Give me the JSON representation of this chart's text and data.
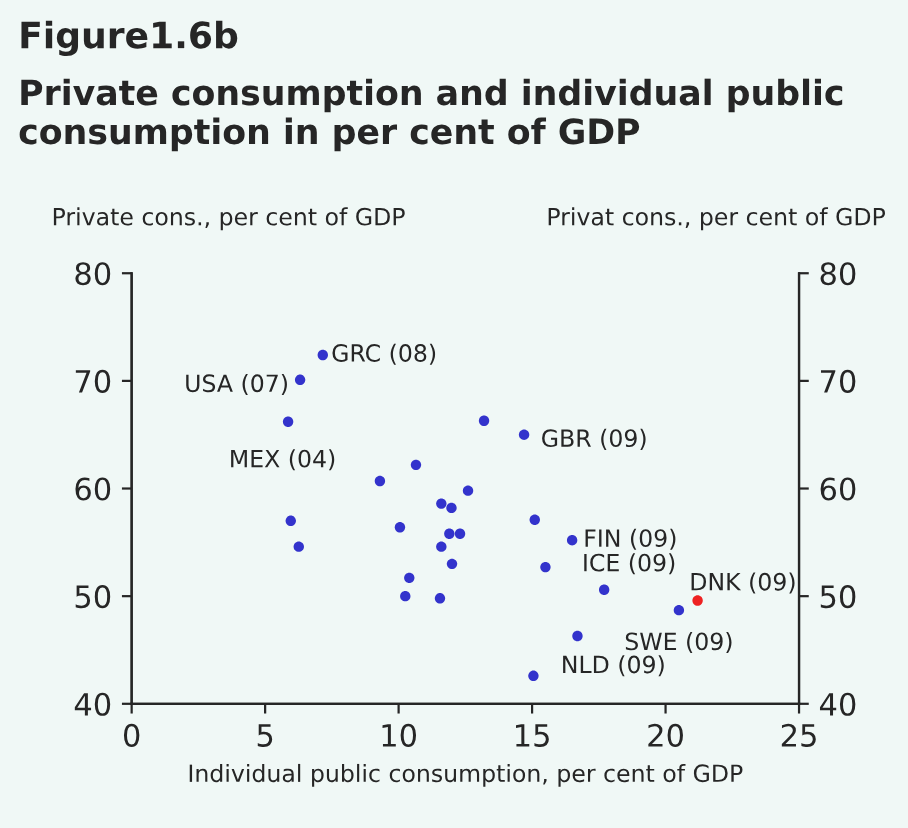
{
  "chart_data": {
    "type": "scatter",
    "title": "Figure1.6b",
    "subtitle": "Private consumption and individual public consumption in per cent of GDP",
    "xlabel": "Individual public consumption, per cent of GDP",
    "ylabel": "Private cons., per cent of GDP",
    "y2label": "Privat cons., per cent of GDP",
    "series": [
      {
        "color": "#3333cc",
        "x": [
          7.16,
          6.31,
          5.86,
          13.2,
          14.7,
          10.65,
          9.3,
          12.6,
          11.6,
          11.98,
          5.96,
          15.1,
          10.05,
          11.9,
          12.3,
          6.26,
          11.6,
          15.5,
          12.0,
          10.4,
          10.25,
          11.55,
          15.05,
          16.5,
          17.7,
          20.5,
          16.7
        ],
        "values": [
          72.4,
          70.1,
          66.2,
          66.3,
          65.0,
          62.2,
          60.7,
          59.8,
          58.6,
          58.2,
          57.0,
          57.1,
          56.4,
          55.8,
          55.8,
          54.6,
          54.6,
          52.7,
          53.0,
          51.7,
          50.0,
          49.8,
          42.6,
          55.2,
          50.6,
          48.7,
          46.3
        ]
      },
      {
        "color": "#ee2222",
        "x": [
          21.2
        ],
        "values": [
          49.6
        ]
      }
    ],
    "annotations": [
      {
        "text": "GRC (08)",
        "x": 7.16,
        "y": 72.4
      },
      {
        "text": "USA (07)",
        "x": 6.31,
        "y": 70.1
      },
      {
        "text": "MEX (04)",
        "x": 5.86,
        "y": 66.2
      },
      {
        "text": "GBR (09)",
        "x": 14.7,
        "y": 65.0
      },
      {
        "text": "FIN (09)",
        "x": 16.5,
        "y": 55.2
      },
      {
        "text": "ICE (09)",
        "x": 17.7,
        "y": 50.6
      },
      {
        "text": "DNK (09)",
        "x": 21.2,
        "y": 49.6
      },
      {
        "text": "SWE (09)",
        "x": 20.5,
        "y": 48.7
      },
      {
        "text": "NLD (09)",
        "x": 16.7,
        "y": 46.3
      }
    ],
    "xlim": [
      0,
      25
    ],
    "xticks": [
      0,
      5,
      10,
      15,
      20,
      25
    ],
    "ylim": [
      40,
      80
    ],
    "yticks": [
      40,
      50,
      60,
      70,
      80
    ],
    "y2lim": [
      40,
      80
    ],
    "y2ticks": [
      40,
      50,
      60,
      70,
      80
    ],
    "marker": "circle",
    "grid": false,
    "legend": false
  }
}
